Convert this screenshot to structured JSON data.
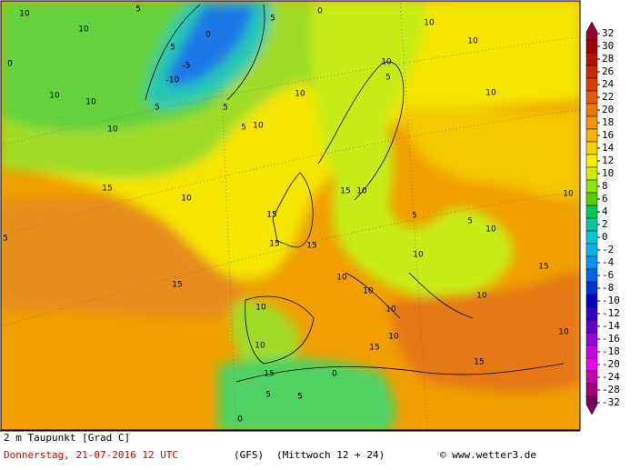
{
  "map": {
    "labels": [
      10,
      5,
      10,
      5,
      0,
      -5,
      -10,
      5,
      5,
      10,
      10,
      10,
      5,
      10,
      10,
      0,
      5,
      10,
      5,
      10,
      10,
      10,
      15,
      10,
      15,
      15,
      15,
      15,
      15,
      10,
      10,
      10,
      10,
      10,
      10,
      15,
      5,
      0,
      5,
      0,
      15,
      10,
      10,
      15,
      10,
      15,
      10,
      10,
      5,
      5,
      10,
      0,
      5
    ]
  },
  "colorbar": {
    "ticks": [
      32,
      30,
      28,
      26,
      24,
      22,
      20,
      18,
      16,
      14,
      12,
      10,
      8,
      6,
      4,
      2,
      0,
      -2,
      -4,
      -6,
      -8,
      -10,
      -12,
      -14,
      -16,
      -18,
      -20,
      -24,
      -28,
      -32
    ],
    "colors": [
      "#9a0032",
      "#a00000",
      "#b41400",
      "#c82800",
      "#dc3c00",
      "#e65a00",
      "#f07800",
      "#f59600",
      "#f5b400",
      "#f5d200",
      "#f5f000",
      "#c8f000",
      "#8ce600",
      "#50d200",
      "#00c850",
      "#00c8a0",
      "#00c8dc",
      "#00b4f0",
      "#0096f0",
      "#0064f0",
      "#0032dc",
      "#0000c8",
      "#3200c8",
      "#6400c8",
      "#9600dc",
      "#c800e6",
      "#f000f0",
      "#c800b4",
      "#a00080",
      "#780060"
    ]
  },
  "footer": {
    "title": "2 m Taupunkt [Grad C]",
    "date": "Donnerstag, 21-07-2016  12 UTC",
    "model": "(GFS)",
    "run": "(Mittwoch 12 + 24)",
    "credit": "© www.wetter3.de"
  }
}
